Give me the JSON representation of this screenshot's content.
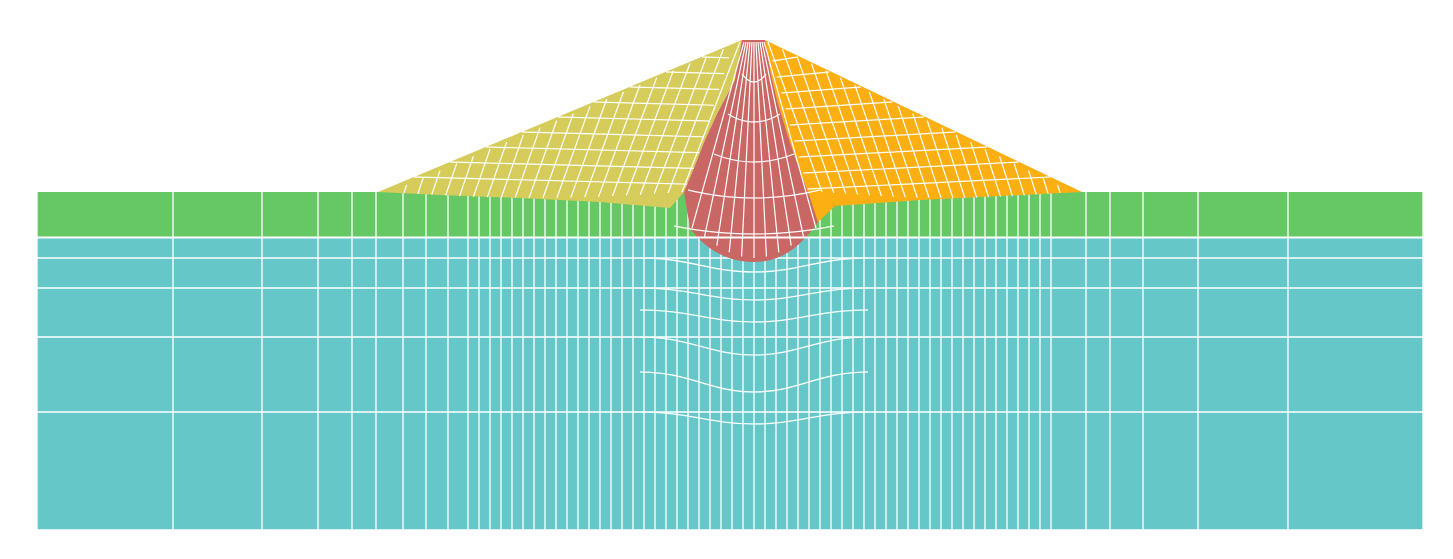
{
  "figure": {
    "kind": "finite element mesh",
    "colors": {
      "background": "#ffffff",
      "mesh_lines": "#ffffff",
      "foundation_layer": "#65c7c8",
      "surface_layer": "#66c864",
      "upstream_shell": "#d5cc5b",
      "core": "#c96765",
      "downstream_shell": "#fcaf12"
    },
    "regions": [
      {
        "id": "foundation-layer",
        "fill_key": "foundation_layer"
      },
      {
        "id": "surface-layer",
        "fill_key": "surface_layer"
      },
      {
        "id": "upstream-shell",
        "fill_key": "upstream_shell"
      },
      {
        "id": "core",
        "fill_key": "core"
      },
      {
        "id": "downstream-shell",
        "fill_key": "downstream_shell"
      }
    ]
  }
}
